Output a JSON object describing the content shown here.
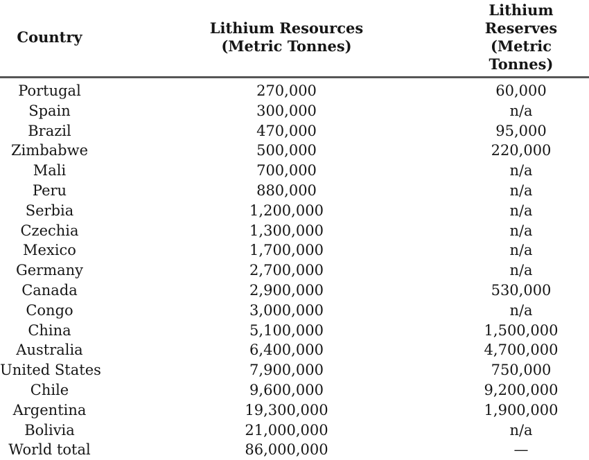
{
  "table": {
    "columns": [
      {
        "label": "Country",
        "sublabel": ""
      },
      {
        "label": "Lithium Resources",
        "sublabel": "(Metric Tonnes)"
      },
      {
        "label": "Lithium Reserves",
        "sublabel": "(Metric Tonnes)"
      }
    ],
    "rows": [
      {
        "country": "Portugal",
        "resources": "270,000",
        "reserves": "60,000"
      },
      {
        "country": "Spain",
        "resources": "300,000",
        "reserves": "n/a"
      },
      {
        "country": "Brazil",
        "resources": "470,000",
        "reserves": "95,000"
      },
      {
        "country": "Zimbabwe",
        "resources": "500,000",
        "reserves": "220,000"
      },
      {
        "country": "Mali",
        "resources": "700,000",
        "reserves": "n/a"
      },
      {
        "country": "Peru",
        "resources": "880,000",
        "reserves": "n/a"
      },
      {
        "country": "Serbia",
        "resources": "1,200,000",
        "reserves": "n/a"
      },
      {
        "country": "Czechia",
        "resources": "1,300,000",
        "reserves": "n/a"
      },
      {
        "country": "Mexico",
        "resources": "1,700,000",
        "reserves": "n/a"
      },
      {
        "country": "Germany",
        "resources": "2,700,000",
        "reserves": "n/a"
      },
      {
        "country": "Canada",
        "resources": "2,900,000",
        "reserves": "530,000"
      },
      {
        "country": "Congo",
        "resources": "3,000,000",
        "reserves": "n/a"
      },
      {
        "country": "China",
        "resources": "5,100,000",
        "reserves": "1,500,000"
      },
      {
        "country": "Australia",
        "resources": "6,400,000",
        "reserves": "4,700,000"
      },
      {
        "country": "United States",
        "resources": "7,900,000",
        "reserves": "750,000"
      },
      {
        "country": "Chile",
        "resources": "9,600,000",
        "reserves": "9,200,000"
      },
      {
        "country": "Argentina",
        "resources": "19,300,000",
        "reserves": "1,900,000"
      },
      {
        "country": "Bolivia",
        "resources": "21,000,000",
        "reserves": "n/a"
      },
      {
        "country": "World total",
        "resources": "86,000,000",
        "reserves": "—"
      }
    ]
  },
  "colors": {
    "text": "#161616",
    "header_rule": "#565656",
    "background": "#ffffff"
  },
  "chart_data": {
    "type": "table",
    "title": "",
    "columns": [
      "Country",
      "Lithium Resources (Metric Tonnes)",
      "Lithium Reserves (Metric Tonnes)"
    ],
    "rows": [
      [
        "Portugal",
        270000,
        60000
      ],
      [
        "Spain",
        300000,
        null
      ],
      [
        "Brazil",
        470000,
        95000
      ],
      [
        "Zimbabwe",
        500000,
        220000
      ],
      [
        "Mali",
        700000,
        null
      ],
      [
        "Peru",
        880000,
        null
      ],
      [
        "Serbia",
        1200000,
        null
      ],
      [
        "Czechia",
        1300000,
        null
      ],
      [
        "Mexico",
        1700000,
        null
      ],
      [
        "Germany",
        2700000,
        null
      ],
      [
        "Canada",
        2900000,
        530000
      ],
      [
        "Congo",
        3000000,
        null
      ],
      [
        "China",
        5100000,
        1500000
      ],
      [
        "Australia",
        6400000,
        4700000
      ],
      [
        "United States",
        7900000,
        750000
      ],
      [
        "Chile",
        9600000,
        9200000
      ],
      [
        "Argentina",
        19300000,
        1900000
      ],
      [
        "Bolivia",
        21000000,
        null
      ],
      [
        "World total",
        86000000,
        null
      ]
    ]
  }
}
